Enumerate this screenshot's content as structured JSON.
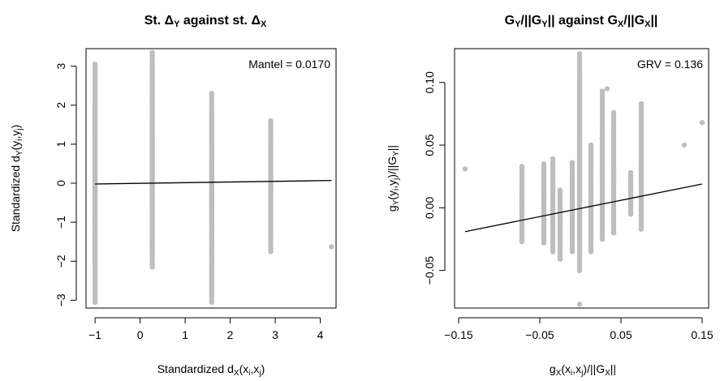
{
  "chart_data": [
    {
      "type": "scatter",
      "title_prefix": "St. Δ",
      "title_sub": "Y",
      "title_mid": " against st. Δ",
      "title_sub2": "X",
      "xlabel_prefix": "Standardized d",
      "xlabel_sub": "X",
      "xlabel_args": "(x",
      "xlabel_i": "i",
      "xlabel_comma": ",x",
      "xlabel_j": "j",
      "xlabel_close": ")",
      "ylabel_prefix": "Standardized d",
      "ylabel_sub": "Y",
      "ylabel_args": "(y",
      "ylabel_i": "i",
      "ylabel_comma": ",y",
      "ylabel_j": "j",
      "ylabel_close": ")",
      "statistic": "Mantel = 0.0170",
      "xlim": [
        -1.2,
        4.35
      ],
      "ylim": [
        -3.2,
        3.45
      ],
      "x_ticks": [
        -1,
        0,
        1,
        2,
        3,
        4
      ],
      "x_tick_labels": [
        "−1",
        "0",
        "1",
        "2",
        "3",
        "4"
      ],
      "y_ticks": [
        -3,
        -2,
        -1,
        0,
        1,
        2,
        3
      ],
      "y_tick_labels": [
        "−3",
        "−2",
        "−1",
        "0",
        "1",
        "2",
        "3"
      ],
      "columns": [
        {
          "x": -1.0,
          "y_min": -3.05,
          "y_max": 3.05
        },
        {
          "x": 0.27,
          "y_min": -2.15,
          "y_max": 3.35
        },
        {
          "x": 1.59,
          "y_min": -3.05,
          "y_max": 2.3
        },
        {
          "x": 2.9,
          "y_min": -1.75,
          "y_max": 1.6
        }
      ],
      "outliers": [
        {
          "x": 4.25,
          "y": -1.63
        }
      ],
      "fit_line": {
        "x": [
          -1.0,
          4.25
        ],
        "y": [
          -0.02,
          0.07
        ]
      },
      "point_color": "#bebebe",
      "grid": false
    },
    {
      "type": "scatter",
      "title_prefix": "G",
      "title_sub": "Y",
      "title_mid": "/||G",
      "title_sub2": "Y",
      "title_mid2": "|| against G",
      "title_sub3": "X",
      "title_mid3": "/||G",
      "title_sub4": "X",
      "title_end": "||",
      "xlabel_prefix": "g",
      "xlabel_sub": "X",
      "xlabel_args": "(x",
      "xlabel_i": "i",
      "xlabel_comma": ",x",
      "xlabel_j": "j",
      "xlabel_mid": ")/||G",
      "xlabel_sub2": "X",
      "xlabel_end": "||",
      "ylabel_prefix": "g",
      "ylabel_sub": "Y",
      "ylabel_args": "(y",
      "ylabel_i": "i",
      "ylabel_comma": ",y",
      "ylabel_j": "j",
      "ylabel_mid": ")/||G",
      "ylabel_sub2": "Y",
      "ylabel_end": "||",
      "statistic": "GRV = 0.136",
      "xlim": [
        -0.155,
        0.158
      ],
      "ylim": [
        -0.08,
        0.127
      ],
      "x_ticks": [
        -0.15,
        -0.05,
        0.05,
        0.15
      ],
      "x_tick_labels": [
        "−0.15",
        "−0.05",
        "0.05",
        "0.15"
      ],
      "y_ticks": [
        -0.05,
        0.0,
        0.05,
        0.1
      ],
      "y_tick_labels": [
        "−0.05",
        "0.00",
        "0.05",
        "0.10"
      ],
      "columns": [
        {
          "x": -0.072,
          "y_min": -0.027,
          "y_max": 0.033
        },
        {
          "x": -0.045,
          "y_min": -0.028,
          "y_max": 0.035
        },
        {
          "x": -0.034,
          "y_min": -0.035,
          "y_max": 0.039
        },
        {
          "x": -0.025,
          "y_min": -0.041,
          "y_max": 0.014
        },
        {
          "x": -0.01,
          "y_min": -0.035,
          "y_max": 0.036
        },
        {
          "x": -0.001,
          "y_min": -0.05,
          "y_max": 0.12
        },
        {
          "x": 0.013,
          "y_min": -0.035,
          "y_max": 0.05
        },
        {
          "x": 0.027,
          "y_min": -0.025,
          "y_max": 0.093
        },
        {
          "x": 0.041,
          "y_min": -0.02,
          "y_max": 0.076
        },
        {
          "x": 0.062,
          "y_min": -0.005,
          "y_max": 0.028
        },
        {
          "x": 0.075,
          "y_min": -0.017,
          "y_max": 0.083
        }
      ],
      "outliers": [
        {
          "x": -0.142,
          "y": 0.031
        },
        {
          "x": 0.128,
          "y": 0.05
        },
        {
          "x": 0.15,
          "y": 0.068
        },
        {
          "x": -0.001,
          "y": -0.077
        },
        {
          "x": -0.001,
          "y": 0.123
        },
        {
          "x": 0.033,
          "y": 0.095
        }
      ],
      "fit_line": {
        "x": [
          -0.142,
          0.15
        ],
        "y": [
          -0.019,
          0.019
        ]
      },
      "point_color": "#bebebe",
      "grid": false
    }
  ]
}
